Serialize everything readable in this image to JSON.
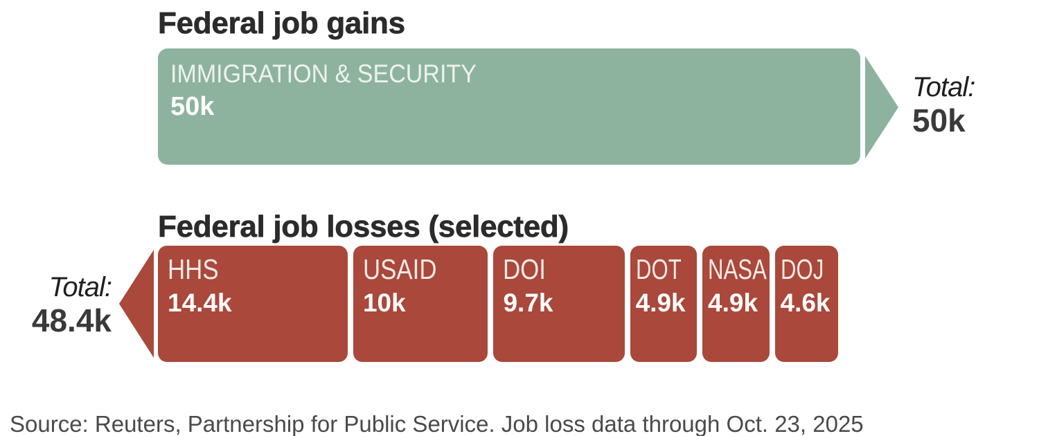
{
  "colors": {
    "gain_bar": "#8db39e",
    "loss_bar": "#a9483b",
    "title": "#2b2b2b",
    "source_text": "#4a4a4a"
  },
  "chart_data": {
    "type": "bar",
    "title_gains": "Federal job gains",
    "title_losses": "Federal job losses (selected)",
    "unit": "thousands of jobs",
    "gains": {
      "segments": [
        {
          "label": "IMMIGRATION & SECURITY",
          "value": 50,
          "value_label": "50k"
        }
      ],
      "total": 50,
      "total_label": "Total:",
      "total_value": "50k"
    },
    "losses": {
      "segments": [
        {
          "label": "HHS",
          "value": 14.4,
          "value_label": "14.4k"
        },
        {
          "label": "USAID",
          "value": 10,
          "value_label": "10k"
        },
        {
          "label": "DOI",
          "value": 9.7,
          "value_label": "9.7k"
        },
        {
          "label": "DOT",
          "value": 4.9,
          "value_label": "4.9k"
        },
        {
          "label": "NASA",
          "value": 4.9,
          "value_label": "4.9k"
        },
        {
          "label": "DOJ",
          "value": 4.6,
          "value_label": "4.6k"
        }
      ],
      "total": 48.4,
      "total_label": "Total:",
      "total_value": "48.4k"
    },
    "source": "Source: Reuters, Partnership for Public Service. Job loss data through Oct. 23, 2025"
  }
}
